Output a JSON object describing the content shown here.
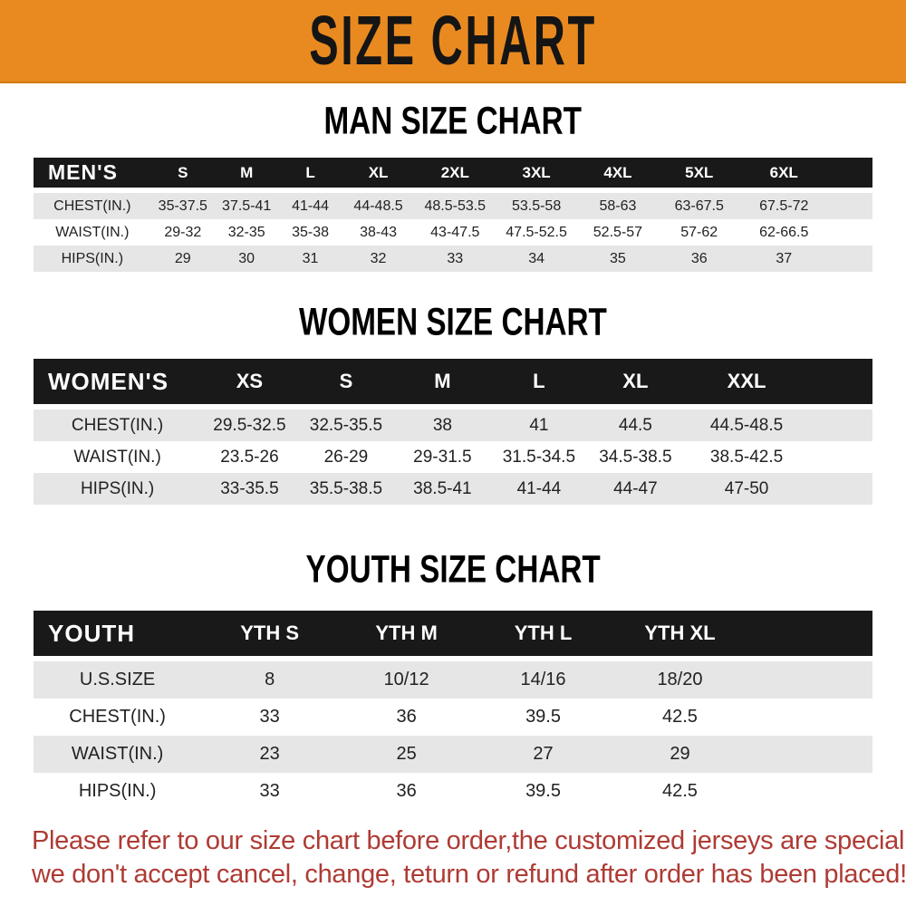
{
  "banner": {
    "title": "SIZE CHART",
    "bg_color": "#E98A21",
    "text_color": "#151515"
  },
  "colors": {
    "header_bar": "#191919",
    "row_stripe": "#E6E6E6",
    "footer_text": "#AE3B34"
  },
  "sections": [
    {
      "heading": "MAN SIZE CHART",
      "table": {
        "label": "MEN'S",
        "columns": [
          "S",
          "M",
          "L",
          "XL",
          "2XL",
          "3XL",
          "4XL",
          "5XL",
          "6XL"
        ],
        "rows": [
          {
            "label": "CHEST(IN.)",
            "values": [
              "35-37.5",
              "37.5-41",
              "41-44",
              "44-48.5",
              "48.5-53.5",
              "53.5-58",
              "58-63",
              "63-67.5",
              "67.5-72"
            ]
          },
          {
            "label": "WAIST(IN.)",
            "values": [
              "29-32",
              "32-35",
              "35-38",
              "38-43",
              "43-47.5",
              "47.5-52.5",
              "52.5-57",
              "57-62",
              "62-66.5"
            ]
          },
          {
            "label": "HIPS(IN.)",
            "values": [
              "29",
              "30",
              "31",
              "32",
              "33",
              "34",
              "35",
              "36",
              "37"
            ]
          }
        ]
      }
    },
    {
      "heading": "WOMEN SIZE CHART",
      "table": {
        "label": "WOMEN'S",
        "columns": [
          "XS",
          "S",
          "M",
          "L",
          "XL",
          "XXL"
        ],
        "rows": [
          {
            "label": "CHEST(IN.)",
            "values": [
              "29.5-32.5",
              "32.5-35.5",
              "38",
              "41",
              "44.5",
              "44.5-48.5"
            ]
          },
          {
            "label": "WAIST(IN.)",
            "values": [
              "23.5-26",
              "26-29",
              "29-31.5",
              "31.5-34.5",
              "34.5-38.5",
              "38.5-42.5"
            ]
          },
          {
            "label": "HIPS(IN.)",
            "values": [
              "33-35.5",
              "35.5-38.5",
              "38.5-41",
              "41-44",
              "44-47",
              "47-50"
            ]
          }
        ]
      }
    },
    {
      "heading": "YOUTH SIZE CHART",
      "table": {
        "label": "YOUTH",
        "columns": [
          "YTH S",
          "YTH M",
          "YTH L",
          "YTH XL"
        ],
        "rows": [
          {
            "label": "U.S.SIZE",
            "values": [
              "8",
              "10/12",
              "14/16",
              "18/20"
            ]
          },
          {
            "label": "CHEST(IN.)",
            "values": [
              "33",
              "36",
              "39.5",
              "42.5"
            ]
          },
          {
            "label": "WAIST(IN.)",
            "values": [
              "23",
              "25",
              "27",
              "29"
            ]
          },
          {
            "label": "HIPS(IN.)",
            "values": [
              "33",
              "36",
              "39.5",
              "42.5"
            ]
          }
        ]
      }
    }
  ],
  "footer": {
    "line1": "Please refer to our size chart before order,the customized jerseys are special products,",
    "line2": "we don't accept cancel, change, teturn or refund after order has been placed!"
  }
}
